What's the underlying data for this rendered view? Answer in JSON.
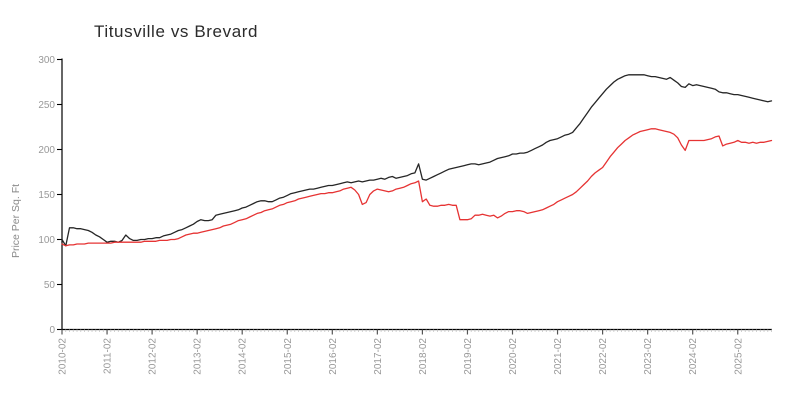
{
  "title": "Titusville vs Brevard",
  "chart_data": {
    "type": "line",
    "title": "Titusville vs Brevard",
    "xlabel": "",
    "ylabel": "Price Per Sq. Ft",
    "x_start": "2010-02",
    "x_interval": "monthly",
    "x_tick_labels": [
      "2010-02",
      "2011-02",
      "2012-02",
      "2013-02",
      "2014-02",
      "2015-02",
      "2016-02",
      "2017-02",
      "2018-02",
      "2019-02",
      "2020-02",
      "2021-02",
      "2022-02",
      "2023-02",
      "2024-02",
      "2025-02"
    ],
    "y_ticks": [
      0,
      50,
      100,
      150,
      200,
      250,
      300
    ],
    "ylim": [
      0,
      300
    ],
    "grid": false,
    "legend_position": "none",
    "axis_color": "#000000",
    "tick_label_color": "#999999",
    "title_color": "#2b2b2b",
    "series": [
      {
        "name": "Brevard",
        "color": "#262626",
        "values": [
          100,
          93,
          113,
          113,
          112,
          112,
          111,
          110,
          108,
          105,
          103,
          100,
          97,
          98,
          98,
          97,
          99,
          105,
          101,
          99,
          99,
          100,
          100,
          101,
          101,
          102,
          102,
          104,
          105,
          106,
          108,
          110,
          111,
          113,
          115,
          117,
          120,
          122,
          121,
          121,
          122,
          127,
          128,
          129,
          130,
          131,
          132,
          133,
          135,
          136,
          138,
          140,
          142,
          143,
          143,
          142,
          142,
          144,
          146,
          147,
          149,
          151,
          152,
          153,
          154,
          155,
          156,
          156,
          157,
          158,
          159,
          160,
          160,
          161,
          162,
          163,
          164,
          163,
          164,
          165,
          164,
          165,
          166,
          166,
          167,
          168,
          167,
          169,
          170,
          168,
          169,
          170,
          171,
          173,
          174,
          184,
          167,
          166,
          168,
          170,
          172,
          174,
          176,
          178,
          179,
          180,
          181,
          182,
          183,
          184,
          184,
          183,
          184,
          185,
          186,
          188,
          190,
          191,
          192,
          193,
          195,
          195,
          196,
          196,
          197,
          199,
          201,
          203,
          205,
          208,
          210,
          211,
          212,
          214,
          216,
          217,
          219,
          224,
          229,
          235,
          241,
          247,
          252,
          257,
          262,
          267,
          271,
          275,
          278,
          280,
          282,
          283,
          283,
          283,
          283,
          283,
          282,
          281,
          281,
          280,
          279,
          278,
          280,
          277,
          274,
          270,
          269,
          273,
          271,
          272,
          271,
          270,
          269,
          268,
          267,
          264,
          263,
          263,
          262,
          261,
          261,
          260,
          259,
          258,
          257,
          256,
          255,
          254,
          253,
          254
        ]
      },
      {
        "name": "Titusville",
        "color": "#e63333",
        "values": [
          95,
          93,
          94,
          94,
          95,
          95,
          95,
          96,
          96,
          96,
          96,
          96,
          96,
          96,
          97,
          97,
          97,
          97,
          97,
          97,
          97,
          97,
          98,
          98,
          98,
          98,
          99,
          99,
          99,
          100,
          100,
          101,
          103,
          105,
          106,
          107,
          107,
          108,
          109,
          110,
          111,
          112,
          113,
          115,
          116,
          117,
          119,
          121,
          122,
          123,
          125,
          127,
          129,
          130,
          132,
          133,
          134,
          136,
          138,
          139,
          141,
          142,
          143,
          145,
          146,
          147,
          148,
          149,
          150,
          151,
          151,
          152,
          152,
          153,
          154,
          156,
          157,
          158,
          155,
          150,
          139,
          141,
          150,
          154,
          156,
          155,
          154,
          153,
          154,
          156,
          157,
          158,
          160,
          162,
          163,
          165,
          142,
          145,
          138,
          137,
          137,
          138,
          138,
          139,
          138,
          138,
          122,
          122,
          122,
          123,
          127,
          127,
          128,
          127,
          126,
          127,
          124,
          126,
          129,
          131,
          131,
          132,
          132,
          131,
          129,
          130,
          131,
          132,
          133,
          135,
          137,
          139,
          142,
          144,
          146,
          148,
          150,
          153,
          157,
          161,
          165,
          170,
          174,
          177,
          180,
          186,
          192,
          197,
          202,
          206,
          210,
          213,
          216,
          218,
          220,
          221,
          222,
          223,
          223,
          222,
          221,
          220,
          219,
          217,
          213,
          205,
          199,
          210,
          210,
          210,
          210,
          210,
          211,
          212,
          214,
          215,
          204,
          206,
          207,
          208,
          210,
          208,
          208,
          207,
          208,
          207,
          208,
          208,
          209,
          210
        ]
      }
    ]
  }
}
